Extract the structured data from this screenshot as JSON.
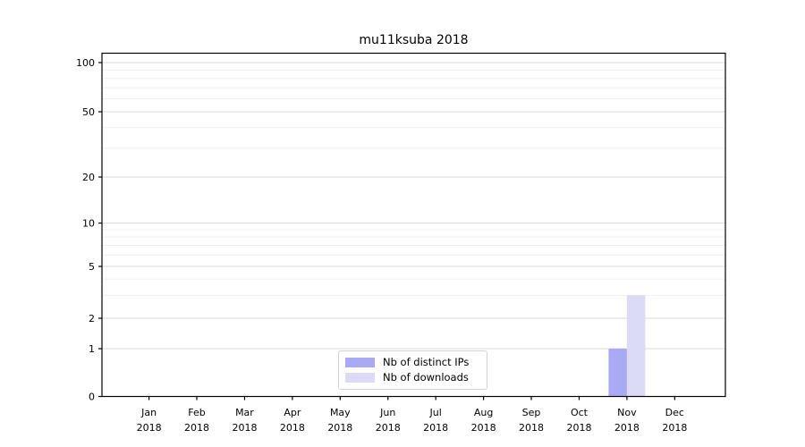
{
  "chart_data": {
    "type": "bar",
    "title": "mu11ksuba 2018",
    "categories": [
      "Jan 2018",
      "Feb 2018",
      "Mar 2018",
      "Apr 2018",
      "May 2018",
      "Jun 2018",
      "Jul 2018",
      "Aug 2018",
      "Sep 2018",
      "Oct 2018",
      "Nov 2018",
      "Dec 2018"
    ],
    "series": [
      {
        "name": "Nb of distinct IPs",
        "color": "#a9a9f4",
        "values": [
          0,
          0,
          0,
          0,
          0,
          0,
          0,
          0,
          0,
          0,
          1,
          0
        ]
      },
      {
        "name": "Nb of downloads",
        "color": "#dbdbf8",
        "values": [
          0,
          0,
          0,
          0,
          0,
          0,
          0,
          0,
          0,
          0,
          3,
          0
        ]
      }
    ],
    "xlabel": "",
    "ylabel": "",
    "y_axis": {
      "scale": "log-like (0,1,2,5,10,20,50,100)",
      "major_ticks": [
        0,
        1,
        2,
        5,
        10,
        20,
        50,
        100
      ],
      "minor_ticks": [
        3,
        4,
        6,
        7,
        8,
        9,
        30,
        40,
        60,
        70,
        80,
        90
      ],
      "ylim": [
        0,
        115
      ]
    },
    "grid": "horizontal major + faint minor",
    "legend_position": "lower center inside plot",
    "colors": {
      "major_grid": "#d9d9d9",
      "minor_grid": "#efefef",
      "spine": "#000000",
      "text": "#000000"
    }
  }
}
